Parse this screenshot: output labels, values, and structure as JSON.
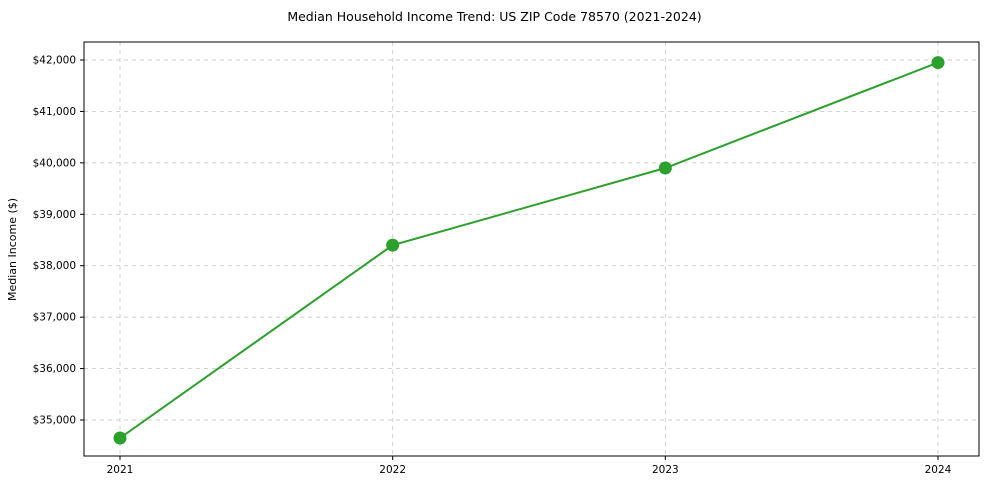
{
  "chart_data": {
    "type": "line",
    "title": "Median Household Income Trend: US ZIP Code 78570 (2021-2024)",
    "xlabel": "",
    "ylabel": "Median Income ($)",
    "x": [
      2021,
      2022,
      2023,
      2024
    ],
    "xtick_labels": [
      "2021",
      "2022",
      "2023",
      "2024"
    ],
    "series": [
      {
        "name": "Median Household Income",
        "values": [
          34650,
          38400,
          39900,
          41950
        ]
      }
    ],
    "ylim": [
      34300,
      42350
    ],
    "yticks": [
      35000,
      36000,
      37000,
      38000,
      39000,
      40000,
      41000,
      42000
    ],
    "ytick_labels": [
      "$35,000",
      "$36,000",
      "$37,000",
      "$38,000",
      "$39,000",
      "$40,000",
      "$41,000",
      "$42,000"
    ],
    "grid": true,
    "legend": "none",
    "line_color": "#2ca02c",
    "marker_color": "#2ca02c",
    "background_color": "#ffffff"
  }
}
